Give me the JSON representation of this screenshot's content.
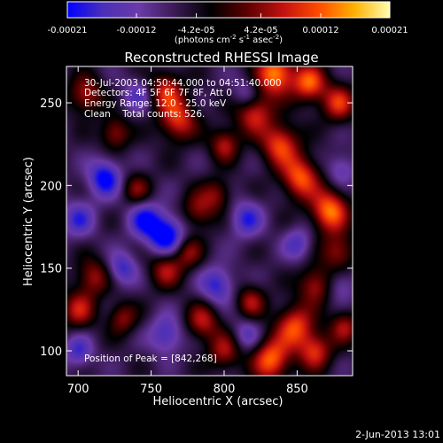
{
  "colors": {
    "background": "#000000",
    "foreground": "#ffffff",
    "colormap": [
      "#0000ff",
      "#4b2fb8",
      "#6b3aa8",
      "#3a1a55",
      "#000000",
      "#5a0000",
      "#c01010",
      "#ff4a00",
      "#ffb000",
      "#ffffb0"
    ]
  },
  "colorbar": {
    "tick_labels": [
      "-0.00021",
      "-0.00012",
      "-4.2e-05",
      "4.2e-05",
      "0.00012",
      "0.00021"
    ],
    "tick_values": [
      -0.00021,
      -0.00012,
      -4.2e-05,
      4.2e-05,
      0.00012,
      0.00021
    ],
    "range": [
      -0.00021,
      0.00021
    ],
    "units_text": "(photons cm",
    "units_exp1": "-2",
    "units_mid": " s",
    "units_exp2": "-1",
    "units_mid2": " asec",
    "units_exp3": "-2",
    "units_end": ")"
  },
  "chart_data": {
    "type": "heatmap",
    "title": "Reconstructed RHESSI Image",
    "xlabel": "Heliocentric X (arcsec)",
    "ylabel": "Heliocentric Y (arcsec)",
    "xlim": [
      692,
      888
    ],
    "ylim": [
      85,
      272
    ],
    "x_ticks": [
      700,
      750,
      800,
      850
    ],
    "y_ticks": [
      100,
      150,
      200,
      250
    ],
    "peak": [
      842,
      268
    ],
    "annotations": {
      "time": "30-Jul-2003 04:50:44.000 to 04:51:40.000",
      "detectors": "Detectors: 4F 5F 6F 7F 8F, Att 0",
      "energy": "Energy Range: 12.0 - 25.0 keV",
      "clean": "Clean    Total counts: 526.",
      "peak": "Position of Peak = [842,268]"
    },
    "blobs": [
      {
        "x": 835,
        "y": 268,
        "v": 1.0,
        "s": 9
      },
      {
        "x": 858,
        "y": 262,
        "v": 0.85,
        "s": 8
      },
      {
        "x": 878,
        "y": 250,
        "v": 0.7,
        "s": 8
      },
      {
        "x": 820,
        "y": 245,
        "v": 0.75,
        "s": 9
      },
      {
        "x": 838,
        "y": 225,
        "v": 0.8,
        "s": 9
      },
      {
        "x": 852,
        "y": 205,
        "v": 0.85,
        "s": 9
      },
      {
        "x": 872,
        "y": 185,
        "v": 0.95,
        "s": 9
      },
      {
        "x": 878,
        "y": 160,
        "v": 0.55,
        "s": 8
      },
      {
        "x": 862,
        "y": 140,
        "v": 0.6,
        "s": 8
      },
      {
        "x": 848,
        "y": 115,
        "v": 0.8,
        "s": 9
      },
      {
        "x": 832,
        "y": 95,
        "v": 0.9,
        "s": 9
      },
      {
        "x": 818,
        "y": 130,
        "v": 0.55,
        "s": 7
      },
      {
        "x": 800,
        "y": 225,
        "v": 0.6,
        "s": 7
      },
      {
        "x": 768,
        "y": 240,
        "v": 0.75,
        "s": 9
      },
      {
        "x": 760,
        "y": 258,
        "v": 0.65,
        "s": 8
      },
      {
        "x": 705,
        "y": 255,
        "v": 0.6,
        "s": 8
      },
      {
        "x": 725,
        "y": 232,
        "v": 0.55,
        "s": 7
      },
      {
        "x": 782,
        "y": 185,
        "v": 0.5,
        "s": 8
      },
      {
        "x": 795,
        "y": 195,
        "v": 0.45,
        "s": 7
      },
      {
        "x": 740,
        "y": 198,
        "v": 0.45,
        "s": 7
      },
      {
        "x": 760,
        "y": 150,
        "v": 0.6,
        "s": 8
      },
      {
        "x": 775,
        "y": 160,
        "v": 0.5,
        "s": 7
      },
      {
        "x": 710,
        "y": 145,
        "v": 0.55,
        "s": 8
      },
      {
        "x": 700,
        "y": 125,
        "v": 0.6,
        "s": 8
      },
      {
        "x": 730,
        "y": 120,
        "v": 0.5,
        "s": 7
      },
      {
        "x": 785,
        "y": 118,
        "v": 0.6,
        "s": 8
      },
      {
        "x": 800,
        "y": 100,
        "v": 0.55,
        "s": 8
      },
      {
        "x": 862,
        "y": 100,
        "v": 0.7,
        "s": 8
      },
      {
        "x": 882,
        "y": 115,
        "v": 0.55,
        "s": 7
      },
      {
        "x": 760,
        "y": 170,
        "v": -0.85,
        "s": 9
      },
      {
        "x": 718,
        "y": 205,
        "v": -0.75,
        "s": 8
      },
      {
        "x": 745,
        "y": 180,
        "v": -0.6,
        "s": 8
      },
      {
        "x": 795,
        "y": 140,
        "v": -0.6,
        "s": 8
      },
      {
        "x": 730,
        "y": 150,
        "v": -0.55,
        "s": 7
      },
      {
        "x": 700,
        "y": 180,
        "v": -0.5,
        "s": 8
      },
      {
        "x": 760,
        "y": 110,
        "v": -0.55,
        "s": 8
      },
      {
        "x": 815,
        "y": 255,
        "v": -0.45,
        "s": 7
      },
      {
        "x": 815,
        "y": 180,
        "v": -0.55,
        "s": 8
      },
      {
        "x": 850,
        "y": 165,
        "v": -0.45,
        "s": 7
      },
      {
        "x": 880,
        "y": 210,
        "v": -0.4,
        "s": 7
      },
      {
        "x": 700,
        "y": 100,
        "v": -0.5,
        "s": 7
      },
      {
        "x": 880,
        "y": 140,
        "v": -0.35,
        "s": 7
      },
      {
        "x": 740,
        "y": 255,
        "v": -0.4,
        "s": 7
      },
      {
        "x": 815,
        "y": 110,
        "v": -0.4,
        "s": 7
      }
    ],
    "base_level": -0.3
  },
  "footer": {
    "date": "2-Jun-2013 13:01"
  }
}
